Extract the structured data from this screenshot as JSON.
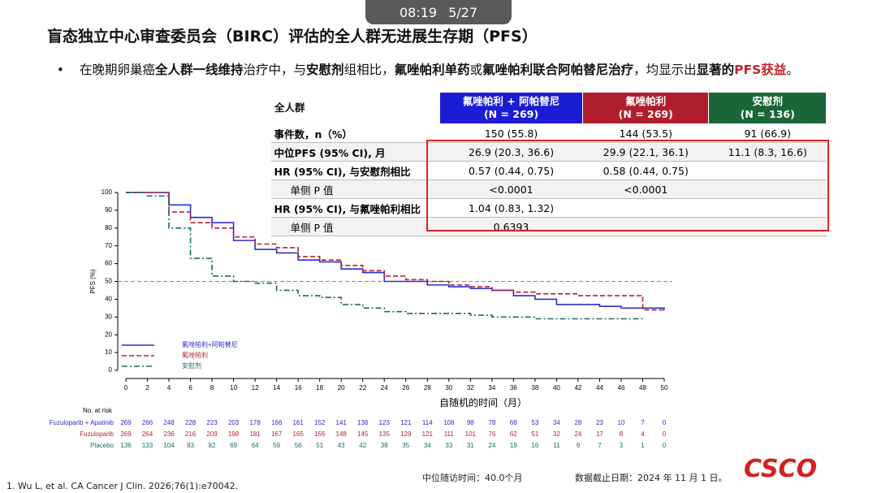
{
  "status": {
    "time": "08:19",
    "page": "5/27"
  },
  "title": "盲态独立中心审查委员会（BIRC）评估的全人群无进展生存期（PFS）",
  "bullet": [
    {
      "text": "在晚期卵巢癌",
      "style": "normal"
    },
    {
      "text": "全人群一线维持",
      "style": "bold"
    },
    {
      "text": "治疗中，与",
      "style": "normal"
    },
    {
      "text": "安慰剂",
      "style": "bold"
    },
    {
      "text": "组相比，",
      "style": "normal"
    },
    {
      "text": "氟唑帕利单药",
      "style": "bold"
    },
    {
      "text": "或",
      "style": "normal"
    },
    {
      "text": "氟唑帕利联合阿帕替尼治疗",
      "style": "bold"
    },
    {
      "text": "，均显示出",
      "style": "normal"
    },
    {
      "text": "显著的",
      "style": "bold"
    },
    {
      "text": "PFS获益",
      "style": "red"
    },
    {
      "text": "。",
      "style": "normal"
    }
  ],
  "table": {
    "header": [
      "全人群",
      [
        "氟唑帕利 + 阿帕替尼",
        "(N = 269)"
      ],
      [
        "氟唑帕利",
        "(N = 269)"
      ],
      [
        "安慰剂",
        "(N = 136)"
      ]
    ],
    "header_colors": [
      "#ffffff",
      "#1c1cd4",
      "#b01e2c",
      "#1a6638"
    ],
    "rows": [
      [
        "事件数，n（%）",
        "150 (55.8)",
        "144 (53.5)",
        "91 (66.9)"
      ],
      [
        "中位PFS (95% CI), 月",
        "26.9 (20.3, 36.6)",
        "29.9 (22.1, 36.1)",
        "11.1 (8.3, 16.6)"
      ],
      [
        "HR (95% CI), 与安慰剂相比",
        "0.57 (0.44, 0.75)",
        "0.58 (0.44, 0.75)",
        ""
      ],
      [
        "单侧 P 值",
        "<0.0001",
        "<0.0001",
        ""
      ],
      [
        "HR (95% CI), 与氟唑帕利相比",
        "1.04 (0.83, 1.32)",
        "",
        ""
      ],
      [
        "单侧 P 值",
        "0.6393",
        "",
        ""
      ]
    ]
  },
  "chart_data": {
    "type": "step",
    "y_label": "PFS (%)",
    "x_label": "自随机的时间（月）",
    "xlim": [
      0,
      50
    ],
    "ylim": [
      0,
      100
    ],
    "xticks": [
      0,
      2,
      4,
      6,
      8,
      10,
      12,
      14,
      16,
      18,
      20,
      22,
      24,
      26,
      28,
      30,
      32,
      34,
      36,
      38,
      40,
      42,
      44,
      46,
      48,
      50
    ],
    "yticks": [
      0,
      10,
      20,
      30,
      40,
      50,
      60,
      70,
      80,
      90,
      100
    ],
    "reference_line": 50,
    "x": [
      0,
      2,
      4,
      6,
      8,
      10,
      12,
      14,
      16,
      18,
      20,
      22,
      24,
      26,
      28,
      30,
      32,
      34,
      36,
      38,
      40,
      42,
      44,
      46,
      48,
      50
    ],
    "series": [
      {
        "name": "氟唑帕利+阿帕替尼",
        "color": "#2b2bd0",
        "line_style": "solid",
        "values": [
          100,
          100,
          93,
          86,
          83,
          73,
          68,
          66,
          62,
          61,
          57,
          55,
          50,
          50,
          48,
          47,
          46,
          45,
          42,
          40,
          37,
          37,
          36,
          35,
          35,
          34
        ]
      },
      {
        "name": "氟唑帕利",
        "color": "#b02430",
        "line_style": "dashed",
        "values": [
          100,
          100,
          89,
          83,
          80,
          75,
          71,
          69,
          64,
          62,
          59,
          56,
          53,
          51,
          50,
          48,
          47,
          45,
          44,
          43,
          43,
          42,
          42,
          42,
          34,
          33
        ]
      },
      {
        "name": "安慰剂",
        "color": "#1a6b5a",
        "line_style": "dashdot",
        "values": [
          100,
          98,
          80,
          63,
          53,
          50,
          49,
          45,
          42,
          41,
          37,
          35,
          33,
          32,
          32,
          32,
          31,
          30,
          30,
          29,
          29,
          29,
          29,
          29,
          29,
          null
        ]
      }
    ],
    "risk_table": {
      "title": "No. at risk",
      "rows": [
        {
          "label": "Fuzuloparib + Apatinib",
          "values": [
            269,
            266,
            248,
            228,
            223,
            203,
            178,
            166,
            161,
            152,
            141,
            138,
            123,
            121,
            114,
            108,
            98,
            78,
            68,
            53,
            34,
            28,
            23,
            10,
            7,
            0
          ]
        },
        {
          "label": "Fuzuloparib",
          "values": [
            269,
            264,
            236,
            216,
            209,
            198,
            181,
            167,
            165,
            156,
            148,
            145,
            135,
            129,
            121,
            111,
            101,
            76,
            62,
            51,
            32,
            24,
            17,
            8,
            4,
            0
          ]
        },
        {
          "label": "Placebo",
          "values": [
            136,
            133,
            104,
            83,
            82,
            69,
            64,
            59,
            56,
            51,
            43,
            42,
            38,
            35,
            34,
            33,
            31,
            24,
            19,
            16,
            11,
            9,
            7,
            3,
            1,
            0
          ]
        }
      ]
    }
  },
  "footnote": "1.    Wu L, et al. CA Cancer J Clin. 2026;76(1):e70042.",
  "follow_up": "中位随访时间：40.0个月",
  "cutoff": "数据截止日期：2024 年 11 月 1 日。",
  "logo": "CSCO"
}
